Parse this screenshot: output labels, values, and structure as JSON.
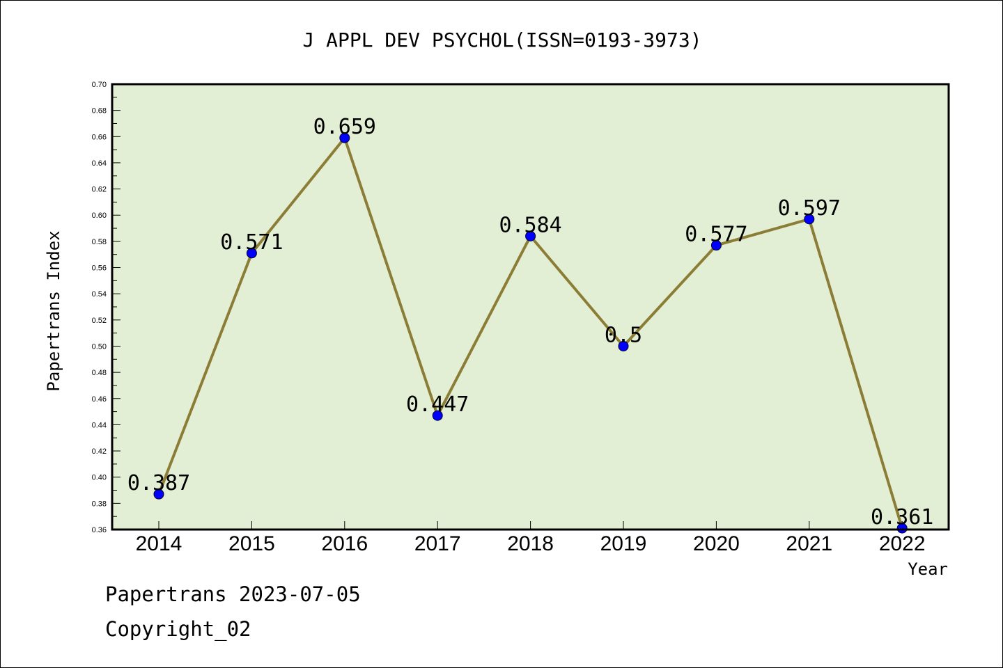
{
  "chart_data": {
    "type": "line",
    "title": "J APPL DEV PSYCHOL(ISSN=0193-3973)",
    "xlabel": "Year",
    "ylabel": "Papertrans Index",
    "categories": [
      "2014",
      "2015",
      "2016",
      "2017",
      "2018",
      "2019",
      "2020",
      "2021",
      "2022"
    ],
    "values": [
      0.387,
      0.571,
      0.659,
      0.447,
      0.584,
      0.5,
      0.577,
      0.597,
      0.361
    ],
    "data_labels": [
      "0.387",
      "0.571",
      "0.659",
      "0.447",
      "0.584",
      "0.5",
      "0.577",
      "0.597",
      "0.361"
    ],
    "ylim": [
      0.36,
      0.7
    ],
    "yticks": [
      "0.36",
      "0.38",
      "0.40",
      "0.42",
      "0.44",
      "0.46",
      "0.48",
      "0.50",
      "0.52",
      "0.54",
      "0.56",
      "0.58",
      "0.60",
      "0.62",
      "0.64",
      "0.66",
      "0.68",
      "0.70"
    ],
    "grid": false,
    "legend": "none",
    "colors": {
      "plot_background": "#e2efd5",
      "line": "#8b7d35",
      "marker": "#0000ff",
      "axis": "#000000"
    }
  },
  "footer": {
    "line1": "Papertrans 2023-07-05",
    "line2": "Copyright_02"
  }
}
